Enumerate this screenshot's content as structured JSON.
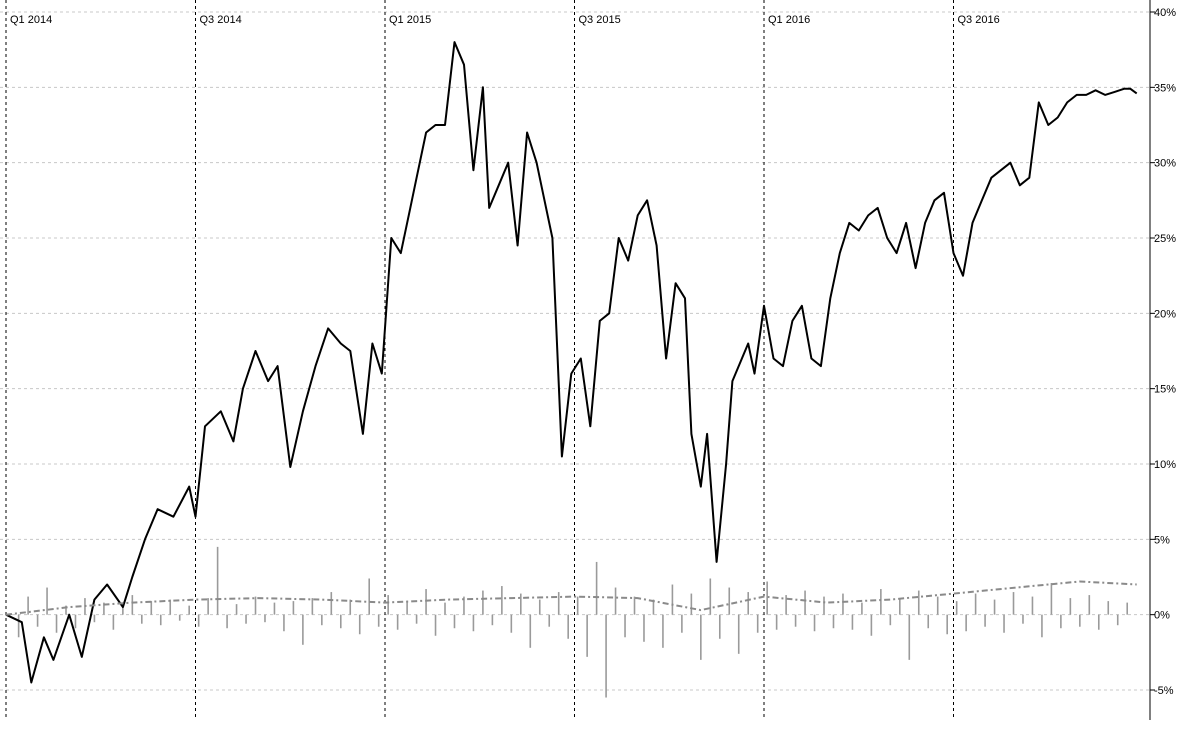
{
  "chart_data": {
    "type": "line",
    "title": "",
    "xlabel": "",
    "ylabel": "",
    "period_labels": [
      "Q1 2014",
      "Q3 2014",
      "Q1 2015",
      "Q3 2015",
      "Q1 2016",
      "Q3 2016"
    ],
    "y_ticks": [
      "40%",
      "35%",
      "30%",
      "25%",
      "20%",
      "15%",
      "10%",
      "5%",
      "0%",
      "-5%"
    ],
    "ylim": [
      -7,
      40
    ],
    "y_axis_position": "right",
    "grid": true,
    "x_range": [
      0,
      36
    ],
    "series": [
      {
        "kind": "cumulative_return",
        "color": "#000000",
        "x": [
          0,
          0.5,
          0.8,
          1.2,
          1.5,
          2.0,
          2.4,
          2.8,
          3.2,
          3.7,
          4.0,
          4.4,
          4.8,
          5.3,
          5.8,
          6.0,
          6.3,
          6.8,
          7.2,
          7.5,
          7.9,
          8.3,
          8.6,
          9.0,
          9.4,
          9.8,
          10.2,
          10.6,
          10.9,
          11.3,
          11.6,
          11.9,
          12.2,
          12.5,
          12.8,
          13.0,
          13.3,
          13.6,
          13.9,
          14.2,
          14.5,
          14.8,
          15.1,
          15.3,
          15.6,
          15.9,
          16.2,
          16.5,
          16.8,
          17.0,
          17.3,
          17.6,
          17.9,
          18.2,
          18.5,
          18.8,
          19.1,
          19.4,
          19.7,
          20.0,
          20.3,
          20.6,
          20.9,
          21.2,
          21.5,
          21.7,
          22.0,
          22.2,
          22.5,
          22.8,
          23.0,
          23.3,
          23.5,
          23.7,
          24.0,
          24.3,
          24.6,
          24.9,
          25.2,
          25.5,
          25.8,
          26.1,
          26.4,
          26.7,
          27.0,
          27.3,
          27.6,
          27.9,
          28.2,
          28.5,
          28.8,
          29.1,
          29.4,
          29.7,
          30.0,
          30.3,
          30.6,
          30.9,
          31.2,
          31.5,
          31.8,
          32.1,
          32.4,
          32.7,
          33.0,
          33.3,
          33.6,
          33.9,
          34.2,
          34.5,
          34.8,
          35.1,
          35.4,
          35.6,
          35.8
        ],
        "y": [
          0,
          -0.5,
          -4.5,
          -1.5,
          -3,
          0,
          -2.8,
          1,
          2,
          0.5,
          2.5,
          5,
          7,
          6.5,
          8.5,
          6.5,
          12.5,
          13.5,
          11.5,
          15,
          17.5,
          15.5,
          16.5,
          9.8,
          13.5,
          16.5,
          19,
          18,
          17.5,
          12,
          18,
          16,
          25,
          24,
          27,
          29,
          32,
          32.5,
          32.5,
          38,
          36.5,
          29.5,
          35,
          27,
          28.5,
          30,
          24.5,
          32,
          30,
          28,
          25,
          10.5,
          16,
          17,
          12.5,
          19.5,
          20,
          25,
          23.5,
          26.5,
          27.5,
          24.5,
          17,
          22,
          21,
          12,
          8.5,
          12,
          3.5,
          10,
          15.5,
          17,
          18,
          16,
          20.5,
          17,
          16.5,
          19.5,
          20.5,
          17,
          16.5,
          21,
          24,
          26,
          25.5,
          26.5,
          27,
          25,
          24,
          26,
          23,
          26,
          27.5,
          28,
          24,
          22.5,
          26,
          27.5,
          29,
          29.5,
          30,
          28.5,
          29,
          34,
          32.5,
          33,
          34,
          34.5,
          34.5,
          34.8,
          34.5,
          34.7,
          34.9,
          34.9,
          34.6
        ]
      },
      {
        "kind": "rolling_average",
        "color": "#8a8a8a",
        "x": [
          0,
          2,
          4,
          6,
          8,
          10,
          12,
          14,
          16,
          18,
          20,
          22,
          24,
          26,
          28,
          30,
          32,
          34,
          35.8
        ],
        "y": [
          0,
          0.5,
          0.8,
          1,
          1.1,
          1,
          0.8,
          1,
          1.1,
          1.2,
          1.1,
          0.3,
          1.2,
          0.8,
          1,
          1.4,
          1.8,
          2.2,
          2
        ]
      },
      {
        "kind": "return_bars",
        "color": "#9a9a9a",
        "x": [
          0.4,
          0.7,
          1.0,
          1.3,
          1.6,
          1.9,
          2.2,
          2.5,
          2.8,
          3.1,
          3.4,
          3.7,
          4.0,
          4.3,
          4.6,
          4.9,
          5.2,
          5.5,
          5.8,
          6.1,
          6.4,
          6.7,
          7.0,
          7.3,
          7.6,
          7.9,
          8.2,
          8.5,
          8.8,
          9.1,
          9.4,
          9.7,
          10.0,
          10.3,
          10.6,
          10.9,
          11.2,
          11.5,
          11.8,
          12.1,
          12.4,
          12.7,
          13.0,
          13.3,
          13.6,
          13.9,
          14.2,
          14.5,
          14.8,
          15.1,
          15.4,
          15.7,
          16.0,
          16.3,
          16.6,
          16.9,
          17.2,
          17.5,
          17.8,
          18.1,
          18.4,
          18.7,
          19.0,
          19.3,
          19.6,
          19.9,
          20.2,
          20.5,
          20.8,
          21.1,
          21.4,
          21.7,
          22.0,
          22.3,
          22.6,
          22.9,
          23.2,
          23.5,
          23.8,
          24.1,
          24.4,
          24.7,
          25.0,
          25.3,
          25.6,
          25.9,
          26.2,
          26.5,
          26.8,
          27.1,
          27.4,
          27.7,
          28.0,
          28.3,
          28.6,
          28.9,
          29.2,
          29.5,
          29.8,
          30.1,
          30.4,
          30.7,
          31.0,
          31.3,
          31.6,
          31.9,
          32.2,
          32.5,
          32.8,
          33.1,
          33.4,
          33.7,
          34.0,
          34.3,
          34.6,
          34.9,
          35.2,
          35.5
        ],
        "y": [
          -1.5,
          1.2,
          -0.8,
          1.8,
          -1.2,
          0.6,
          -0.9,
          1.1,
          -0.5,
          0.8,
          -1.0,
          0.7,
          1.3,
          -0.6,
          0.9,
          -0.7,
          1.0,
          -0.4,
          0.6,
          -0.8,
          1.1,
          4.5,
          -0.9,
          0.7,
          -0.6,
          1.2,
          -0.5,
          0.8,
          -1.1,
          0.9,
          -2.0,
          1.1,
          -0.7,
          1.5,
          -0.9,
          1.0,
          -1.3,
          2.4,
          -0.8,
          1.3,
          -1.0,
          0.9,
          -0.6,
          1.7,
          -1.4,
          0.8,
          -0.9,
          1.2,
          -1.1,
          1.6,
          -0.7,
          1.9,
          -1.2,
          1.4,
          -2.2,
          1.0,
          -0.8,
          1.5,
          -1.6,
          1.2,
          -2.8,
          3.5,
          -5.5,
          1.8,
          -1.5,
          1.2,
          -1.8,
          1.0,
          -2.2,
          2.0,
          -1.2,
          1.4,
          -3.0,
          2.4,
          -1.6,
          1.8,
          -2.6,
          1.5,
          -1.2,
          2.2,
          -1.0,
          1.3,
          -0.8,
          1.6,
          -1.1,
          1.2,
          -0.9,
          1.4,
          -1.0,
          0.8,
          -1.4,
          1.7,
          -0.7,
          1.1,
          -3.0,
          1.6,
          -0.9,
          1.2,
          -1.3,
          0.9,
          -1.1,
          1.4,
          -0.8,
          1.0,
          -1.2,
          1.5,
          -0.6,
          1.2,
          -1.5,
          2.1,
          -0.9,
          1.1,
          -0.8,
          1.3,
          -1.0,
          0.9,
          -0.7,
          0.8
        ]
      }
    ]
  }
}
